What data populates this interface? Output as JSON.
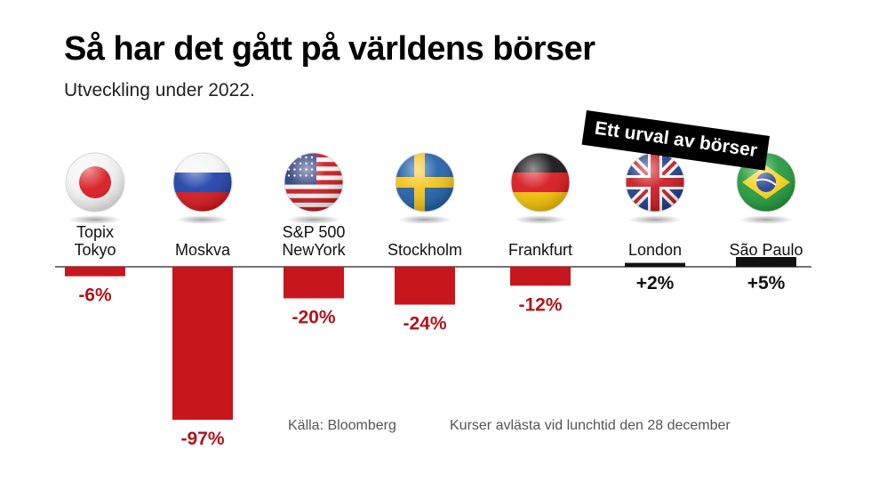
{
  "title": "Så har det gått på världens börser",
  "subtitle": "Utveckling under 2022.",
  "banner": "Ett urval av börser",
  "footer": {
    "source": "Källa: Bloomberg",
    "note": "Kurser avlästa vid lunchtid den 28 december"
  },
  "colors": {
    "negative": "#c8161d",
    "positive": "#111111",
    "negative_text": "#b0141a",
    "positive_text": "#111111"
  },
  "chart_data": {
    "type": "bar",
    "unit": "%",
    "categories": [
      {
        "label_lines": [
          "Topix",
          "Tokyo"
        ],
        "flag": "japan-flag-icon"
      },
      {
        "label_lines": [
          "Moskva"
        ],
        "flag": "russia-flag-icon"
      },
      {
        "label_lines": [
          "S&P 500",
          "NewYork"
        ],
        "flag": "usa-flag-icon"
      },
      {
        "label_lines": [
          "Stockholm"
        ],
        "flag": "sweden-flag-icon"
      },
      {
        "label_lines": [
          "Frankfurt"
        ],
        "flag": "germany-flag-icon"
      },
      {
        "label_lines": [
          "London"
        ],
        "flag": "uk-flag-icon"
      },
      {
        "label_lines": [
          "São Paulo"
        ],
        "flag": "brazil-flag-icon"
      }
    ],
    "values": [
      -6,
      -97,
      -20,
      -24,
      -12,
      2,
      5
    ],
    "value_labels": [
      "-6%",
      "-97%",
      "-20%",
      "-24%",
      "-12%",
      "+2%",
      "+5%"
    ],
    "ylim": [
      -100,
      5
    ],
    "grid": false,
    "legend": "none"
  }
}
